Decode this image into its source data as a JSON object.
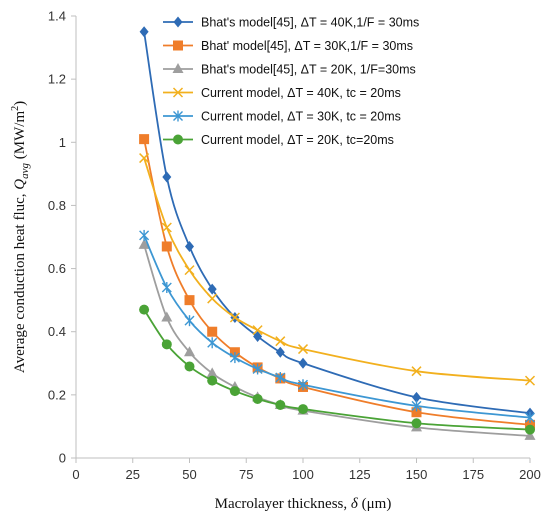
{
  "chart_data": {
    "type": "line",
    "xlabel": "Macrolayer thickness, δ (μm)",
    "ylabel": "Average conduction heat fluc, Q_avg (MW/m²)",
    "ylabel_parts": {
      "prefix": "Average conduction heat fluc, ",
      "symbol": "Q",
      "subscript": "avg",
      "unit_prefix": " (MW/m",
      "unit_sup": "2",
      "unit_suffix": ")"
    },
    "xlabel_parts": {
      "prefix": "Macrolayer thickness, ",
      "symbol": "δ",
      "unit": " (μm)"
    },
    "xlim": [
      0,
      200
    ],
    "ylim": [
      0,
      1.4
    ],
    "xticks": [
      0,
      25,
      50,
      75,
      100,
      125,
      150,
      175,
      200
    ],
    "xtick_labels": [
      "0",
      "25",
      "50",
      "75",
      "100",
      "125",
      "150",
      "175",
      "200"
    ],
    "yticks": [
      0,
      0.2,
      0.4,
      0.6,
      0.8,
      1.0,
      1.2,
      1.4
    ],
    "ytick_labels": [
      "0",
      "0.2",
      "0.4",
      "0.6",
      "0.8",
      "1",
      "1.2",
      "1.4"
    ],
    "grid": false,
    "legend_position": "top-right",
    "series": [
      {
        "name": "Bhat's model[45], ΔT = 40K,1/F = 30ms",
        "color": "#2e6bb5",
        "marker": "diamond",
        "x": [
          30,
          40,
          50,
          60,
          70,
          80,
          90,
          100,
          150,
          200
        ],
        "y": [
          1.35,
          0.89,
          0.67,
          0.535,
          0.445,
          0.385,
          0.335,
          0.3,
          0.192,
          0.142
        ]
      },
      {
        "name": "Bhat' model[45], ΔT = 30K,1/F = 30ms",
        "color": "#ef7d2a",
        "marker": "square",
        "x": [
          30,
          40,
          50,
          60,
          70,
          80,
          90,
          100,
          150,
          200
        ],
        "y": [
          1.01,
          0.67,
          0.5,
          0.4,
          0.335,
          0.287,
          0.252,
          0.225,
          0.145,
          0.105
        ]
      },
      {
        "name": "Bhat's model[45], ΔT = 20K, 1/F=30ms",
        "color": "#9e9e9e",
        "marker": "triangle",
        "x": [
          30,
          40,
          50,
          60,
          70,
          80,
          90,
          100,
          150,
          200
        ],
        "y": [
          0.675,
          0.445,
          0.335,
          0.268,
          0.225,
          0.192,
          0.168,
          0.15,
          0.097,
          0.07
        ]
      },
      {
        "name": "Current model, ΔT = 40K, tc = 20ms",
        "color": "#f2b01e",
        "marker": "x",
        "x": [
          30,
          40,
          50,
          60,
          70,
          80,
          90,
          100,
          150,
          200
        ],
        "y": [
          0.95,
          0.73,
          0.595,
          0.505,
          0.445,
          0.405,
          0.37,
          0.345,
          0.275,
          0.245
        ]
      },
      {
        "name": "Current model, ΔT = 30K, tc = 20ms",
        "color": "#3d97d3",
        "marker": "star",
        "x": [
          30,
          40,
          50,
          60,
          70,
          80,
          90,
          100,
          150,
          200
        ],
        "y": [
          0.705,
          0.54,
          0.435,
          0.365,
          0.318,
          0.282,
          0.255,
          0.232,
          0.165,
          0.128
        ]
      },
      {
        "name": "Current model, ΔT = 20K, tc=20ms",
        "color": "#4aa336",
        "marker": "circle",
        "x": [
          30,
          40,
          50,
          60,
          70,
          80,
          90,
          100,
          150,
          200
        ],
        "y": [
          0.47,
          0.36,
          0.29,
          0.245,
          0.212,
          0.187,
          0.168,
          0.155,
          0.11,
          0.09
        ]
      }
    ]
  }
}
